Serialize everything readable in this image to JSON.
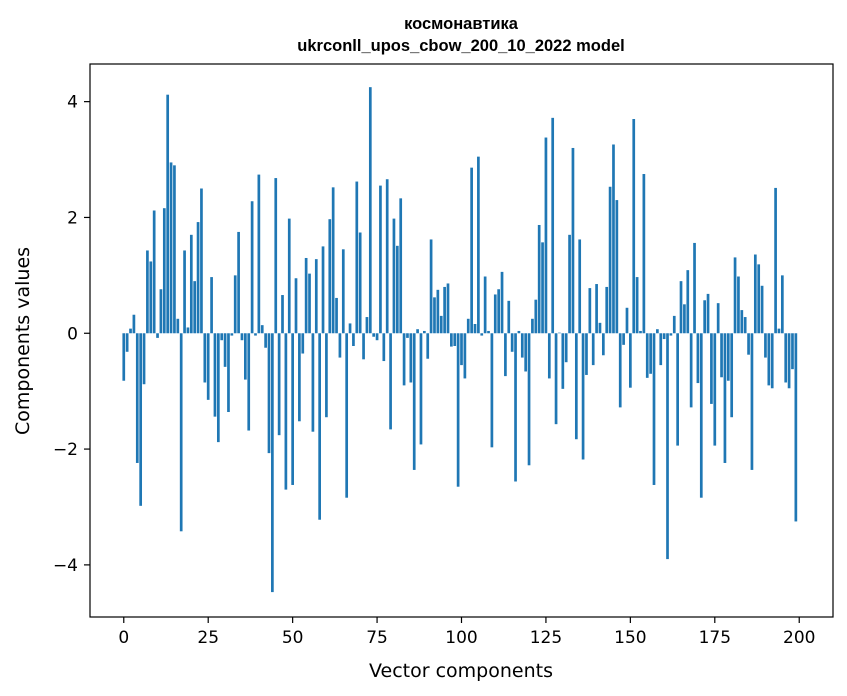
{
  "chart_data": {
    "type": "bar",
    "title": "космонавтика",
    "subtitle": "ukrconll_upos_cbow_200_10_2022 model",
    "xlabel": "Vector components",
    "ylabel": "Components values",
    "xlim": [
      -10,
      210
    ],
    "ylim": [
      -4.9,
      4.65
    ],
    "xticks": [
      0,
      25,
      50,
      75,
      100,
      125,
      150,
      175,
      200
    ],
    "xtick_labels": [
      "0",
      "25",
      "50",
      "75",
      "100",
      "125",
      "150",
      "175",
      "200"
    ],
    "yticks": [
      -4,
      -2,
      0,
      2,
      4
    ],
    "ytick_labels": [
      "−4",
      "−2",
      "0",
      "2",
      "4"
    ],
    "grid": false,
    "bar_color": "#1f77b4",
    "x": [
      0,
      1,
      2,
      3,
      4,
      5,
      6,
      7,
      8,
      9,
      10,
      11,
      12,
      13,
      14,
      15,
      16,
      17,
      18,
      19,
      20,
      21,
      22,
      23,
      24,
      25,
      26,
      27,
      28,
      29,
      30,
      31,
      32,
      33,
      34,
      35,
      36,
      37,
      38,
      39,
      40,
      41,
      42,
      43,
      44,
      45,
      46,
      47,
      48,
      49,
      50,
      51,
      52,
      53,
      54,
      55,
      56,
      57,
      58,
      59,
      60,
      61,
      62,
      63,
      64,
      65,
      66,
      67,
      68,
      69,
      70,
      71,
      72,
      73,
      74,
      75,
      76,
      77,
      78,
      79,
      80,
      81,
      82,
      83,
      84,
      85,
      86,
      87,
      88,
      89,
      90,
      91,
      92,
      93,
      94,
      95,
      96,
      97,
      98,
      99,
      100,
      101,
      102,
      103,
      104,
      105,
      106,
      107,
      108,
      109,
      110,
      111,
      112,
      113,
      114,
      115,
      116,
      117,
      118,
      119,
      120,
      121,
      122,
      123,
      124,
      125,
      126,
      127,
      128,
      129,
      130,
      131,
      132,
      133,
      134,
      135,
      136,
      137,
      138,
      139,
      140,
      141,
      142,
      143,
      144,
      145,
      146,
      147,
      148,
      149,
      150,
      151,
      152,
      153,
      154,
      155,
      156,
      157,
      158,
      159,
      160,
      161,
      162,
      163,
      164,
      165,
      166,
      167,
      168,
      169,
      170,
      171,
      172,
      173,
      174,
      175,
      176,
      177,
      178,
      179,
      180,
      181,
      182,
      183,
      184,
      185,
      186,
      187,
      188,
      189,
      190,
      191,
      192,
      193,
      194,
      195,
      196,
      197,
      198,
      199
    ],
    "values": [
      -0.82,
      -0.32,
      0.08,
      0.32,
      -2.24,
      -2.98,
      -0.88,
      1.43,
      1.24,
      2.12,
      -0.08,
      0.76,
      2.16,
      4.12,
      2.95,
      2.9,
      0.25,
      -3.42,
      1.43,
      0.1,
      1.7,
      0.9,
      1.92,
      2.5,
      -0.85,
      -1.15,
      0.97,
      -1.44,
      -1.88,
      -0.12,
      -0.58,
      -1.36,
      -0.04,
      1.0,
      1.75,
      -0.12,
      -0.8,
      -1.68,
      2.28,
      -0.04,
      2.74,
      0.14,
      -0.25,
      -2.07,
      -4.47,
      2.68,
      -1.76,
      0.66,
      -2.7,
      1.98,
      -2.62,
      0.95,
      -1.52,
      -0.35,
      1.3,
      1.03,
      -1.7,
      1.28,
      -3.22,
      1.5,
      -1.45,
      1.97,
      2.52,
      0.61,
      -0.42,
      1.45,
      -2.84,
      0.17,
      -0.22,
      2.62,
      1.74,
      -0.45,
      0.28,
      4.25,
      -0.06,
      -0.12,
      2.55,
      -0.48,
      2.66,
      -1.66,
      1.98,
      1.51,
      2.33,
      -0.9,
      -0.08,
      -0.85,
      -2.36,
      0.07,
      -1.92,
      0.04,
      -0.44,
      1.62,
      0.62,
      0.75,
      0.3,
      0.8,
      0.86,
      -0.23,
      -0.22,
      -2.65,
      -0.55,
      -0.78,
      0.25,
      2.86,
      0.16,
      3.05,
      -0.04,
      0.98,
      0.04,
      -1.97,
      0.67,
      0.76,
      1.06,
      -0.74,
      0.56,
      -0.32,
      -2.56,
      0.04,
      -0.42,
      -0.66,
      -2.28,
      0.25,
      0.58,
      1.87,
      1.57,
      3.38,
      -0.78,
      3.72,
      -1.57,
      0.01,
      -0.96,
      -0.5,
      1.7,
      3.2,
      -1.83,
      1.62,
      -2.18,
      -0.72,
      0.78,
      -0.55,
      0.85,
      0.18,
      -0.38,
      0.8,
      2.53,
      3.26,
      2.3,
      -1.28,
      -0.2,
      0.44,
      -0.94,
      3.7,
      0.97,
      0.04,
      2.75,
      -0.77,
      -0.7,
      -2.62,
      0.07,
      -0.55,
      -0.1,
      -3.9,
      -0.04,
      0.3,
      -1.94,
      0.9,
      0.5,
      1.09,
      -1.28,
      1.56,
      -0.86,
      -2.84,
      0.57,
      0.68,
      -1.22,
      -1.94,
      0.52,
      -0.76,
      -2.24,
      -0.82,
      -1.45,
      1.31,
      0.98,
      0.4,
      0.28,
      -0.37,
      -2.36,
      1.36,
      1.19,
      0.82,
      -0.42,
      -0.9,
      -0.95,
      2.51,
      0.08,
      1.0,
      -0.85,
      -0.95,
      -0.62,
      -3.25
    ]
  }
}
